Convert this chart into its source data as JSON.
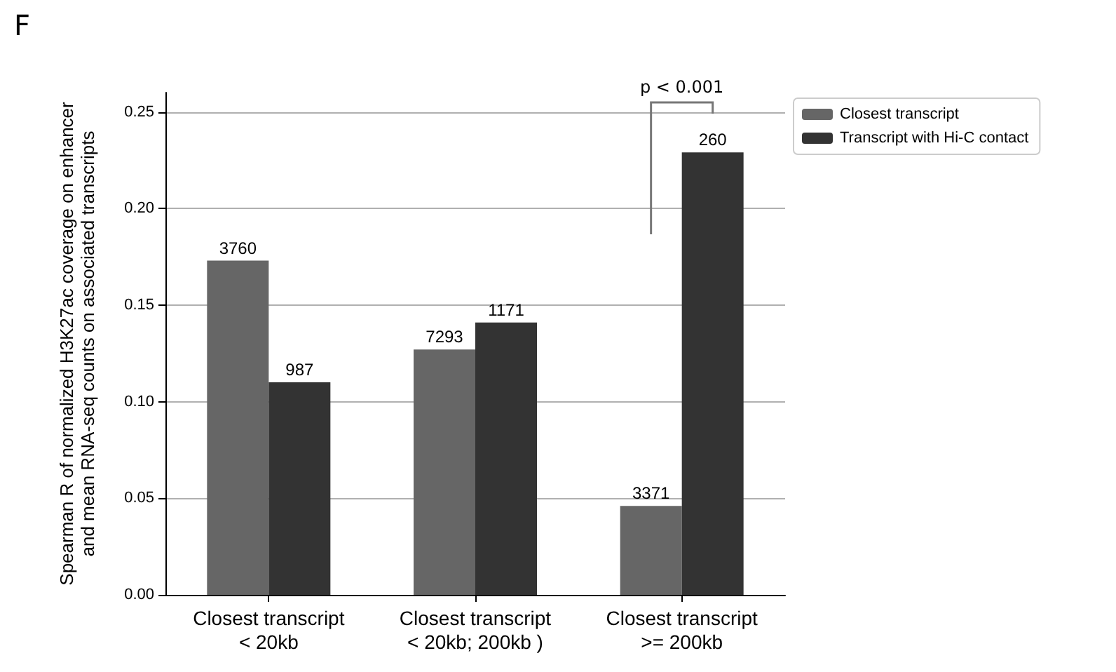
{
  "chart_data": {
    "type": "bar",
    "ylabel": "Spearman R of normalized H3K27ac coverage on enhancer\nand mean RNA-seq counts on associated transcripts",
    "categories": [
      "Closest transcript\n< 20kb",
      "Closest transcript\n< 20kb; 200kb )",
      "Closest transcript\n>= 200kb"
    ],
    "series": [
      {
        "name": "Closest transcript",
        "color": "#666666",
        "values": [
          0.173,
          0.127,
          0.046
        ]
      },
      {
        "name": "Transcript with Hi-C contact",
        "color": "#333333",
        "values": [
          0.11,
          0.141,
          0.229
        ]
      }
    ],
    "ylim": [
      0,
      0.26
    ],
    "yticks": [
      {
        "value": 0,
        "label": "0.00"
      },
      0.05,
      {
        "value": 0.1,
        "label": "0.10"
      },
      0.15,
      {
        "value": 0.2,
        "label": "0.20"
      },
      0.25
    ],
    "grid": "y",
    "legend": "top right",
    "annotations": [
      "F",
      "p < 0.001",
      {
        "text": "3760",
        "x": "Closest transcript\n< 20kb",
        "y": 0.173
      },
      {
        "text": "987",
        "x": "Closest transcript\n< 20kb",
        "y": 0.11
      },
      {
        "text": "7293",
        "x": "Closest transcript\n< 20kb; 200kb )",
        "y": 0.127
      },
      {
        "text": "1171",
        "x": "Closest transcript\n< 20kb; 200kb )",
        "y": 0.141
      },
      {
        "text": "3371",
        "x": "Closest transcript\n>= 200kb",
        "y": 0.046
      },
      {
        "text": "260",
        "x": "Closest transcript\n>= 200kb",
        "y": 0.229
      }
    ]
  }
}
